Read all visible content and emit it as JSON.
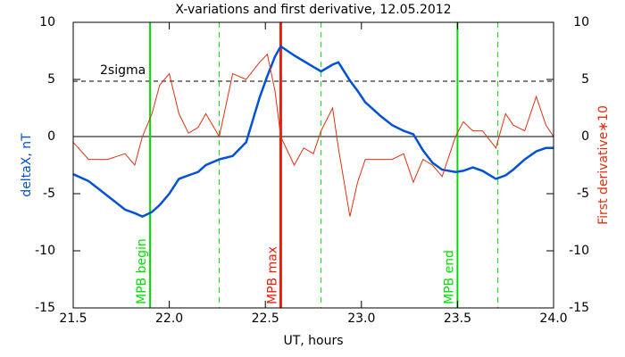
{
  "chart_data": {
    "type": "line",
    "title": "X-variations and first derivative, 12.05.2012",
    "xlabel": "UT, hours",
    "x": [
      21.5,
      21.58,
      21.68,
      21.77,
      21.82,
      21.86,
      21.91,
      21.95,
      22.0,
      22.05,
      22.1,
      22.15,
      22.19,
      22.26,
      22.33,
      22.4,
      22.47,
      22.51,
      22.55,
      22.58,
      22.65,
      22.7,
      22.75,
      22.79,
      22.85,
      22.88,
      22.94,
      22.98,
      23.02,
      23.1,
      23.16,
      23.22,
      23.27,
      23.32,
      23.37,
      23.42,
      23.49,
      23.53,
      23.58,
      23.63,
      23.7,
      23.75,
      23.79,
      23.85,
      23.91,
      23.96,
      24.0
    ],
    "series": [
      {
        "name": "deltaX, nT",
        "color": "#0050d8",
        "values": [
          -3.3,
          -3.9,
          -5.2,
          -6.4,
          -6.7,
          -7.0,
          -6.6,
          -6.0,
          -5.0,
          -3.7,
          -3.4,
          -3.1,
          -2.5,
          -2.0,
          -1.7,
          -0.5,
          3.4,
          5.3,
          7.0,
          7.9,
          7.1,
          6.6,
          6.1,
          5.7,
          6.3,
          6.5,
          4.9,
          4.0,
          3.0,
          1.8,
          1.0,
          0.5,
          0.2,
          -1.2,
          -2.3,
          -2.9,
          -3.1,
          -3.0,
          -2.7,
          -3.0,
          -3.7,
          -3.4,
          -2.9,
          -2.0,
          -1.3,
          -1.0,
          -1.0
        ]
      },
      {
        "name": "First derivative∗10",
        "color": "#e03010",
        "axis": "y2",
        "values": [
          -0.5,
          -2,
          -2,
          -1.5,
          -2.5,
          0,
          2,
          4.5,
          5.5,
          2,
          0.3,
          0.8,
          2,
          0,
          5.5,
          5,
          6.5,
          7.2,
          4,
          0,
          -2.5,
          -1,
          -1.5,
          0.5,
          2.5,
          -1,
          -7,
          -4,
          -2,
          -2,
          -2,
          -1.5,
          -4,
          -2,
          -2.5,
          -3.5,
          0,
          1.3,
          0.5,
          0.5,
          -1,
          2,
          1,
          0.5,
          3.5,
          1,
          0
        ]
      }
    ],
    "xlim": [
      21.5,
      24.0
    ],
    "xticks": [
      21.5,
      {
        "value": 22,
        "label": "22.0"
      },
      22.5,
      {
        "value": 23,
        "label": "23.0"
      },
      23.5,
      {
        "value": 24,
        "label": "24.0"
      }
    ],
    "ylim": [
      -15,
      10
    ],
    "yticks": [
      10,
      5,
      0,
      -5,
      -10,
      -15
    ],
    "y2lim": [
      -15,
      10
    ],
    "y2ticks": [
      10,
      5,
      0,
      -5,
      -10,
      -15
    ],
    "hlines": [
      {
        "y": 4.84,
        "label": "2sigma",
        "style": "dashed",
        "color": "#000000"
      },
      {
        "y": 0,
        "style": "solid",
        "color": "#000000"
      }
    ],
    "vlines": [
      {
        "x": 21.9,
        "label": "MPB begin",
        "color": "#00e000",
        "style": "solid"
      },
      {
        "x": 22.26,
        "color": "#00e000",
        "style": "dashed"
      },
      {
        "x": 22.58,
        "label": "MPB max",
        "color": "#e82010",
        "style": "solid"
      },
      {
        "x": 22.79,
        "color": "#00e000",
        "style": "dashed"
      },
      {
        "x": 23.5,
        "label": "MPB end",
        "color": "#00e000",
        "style": "solid"
      },
      {
        "x": 23.71,
        "color": "#00e000",
        "style": "dashed"
      }
    ]
  }
}
